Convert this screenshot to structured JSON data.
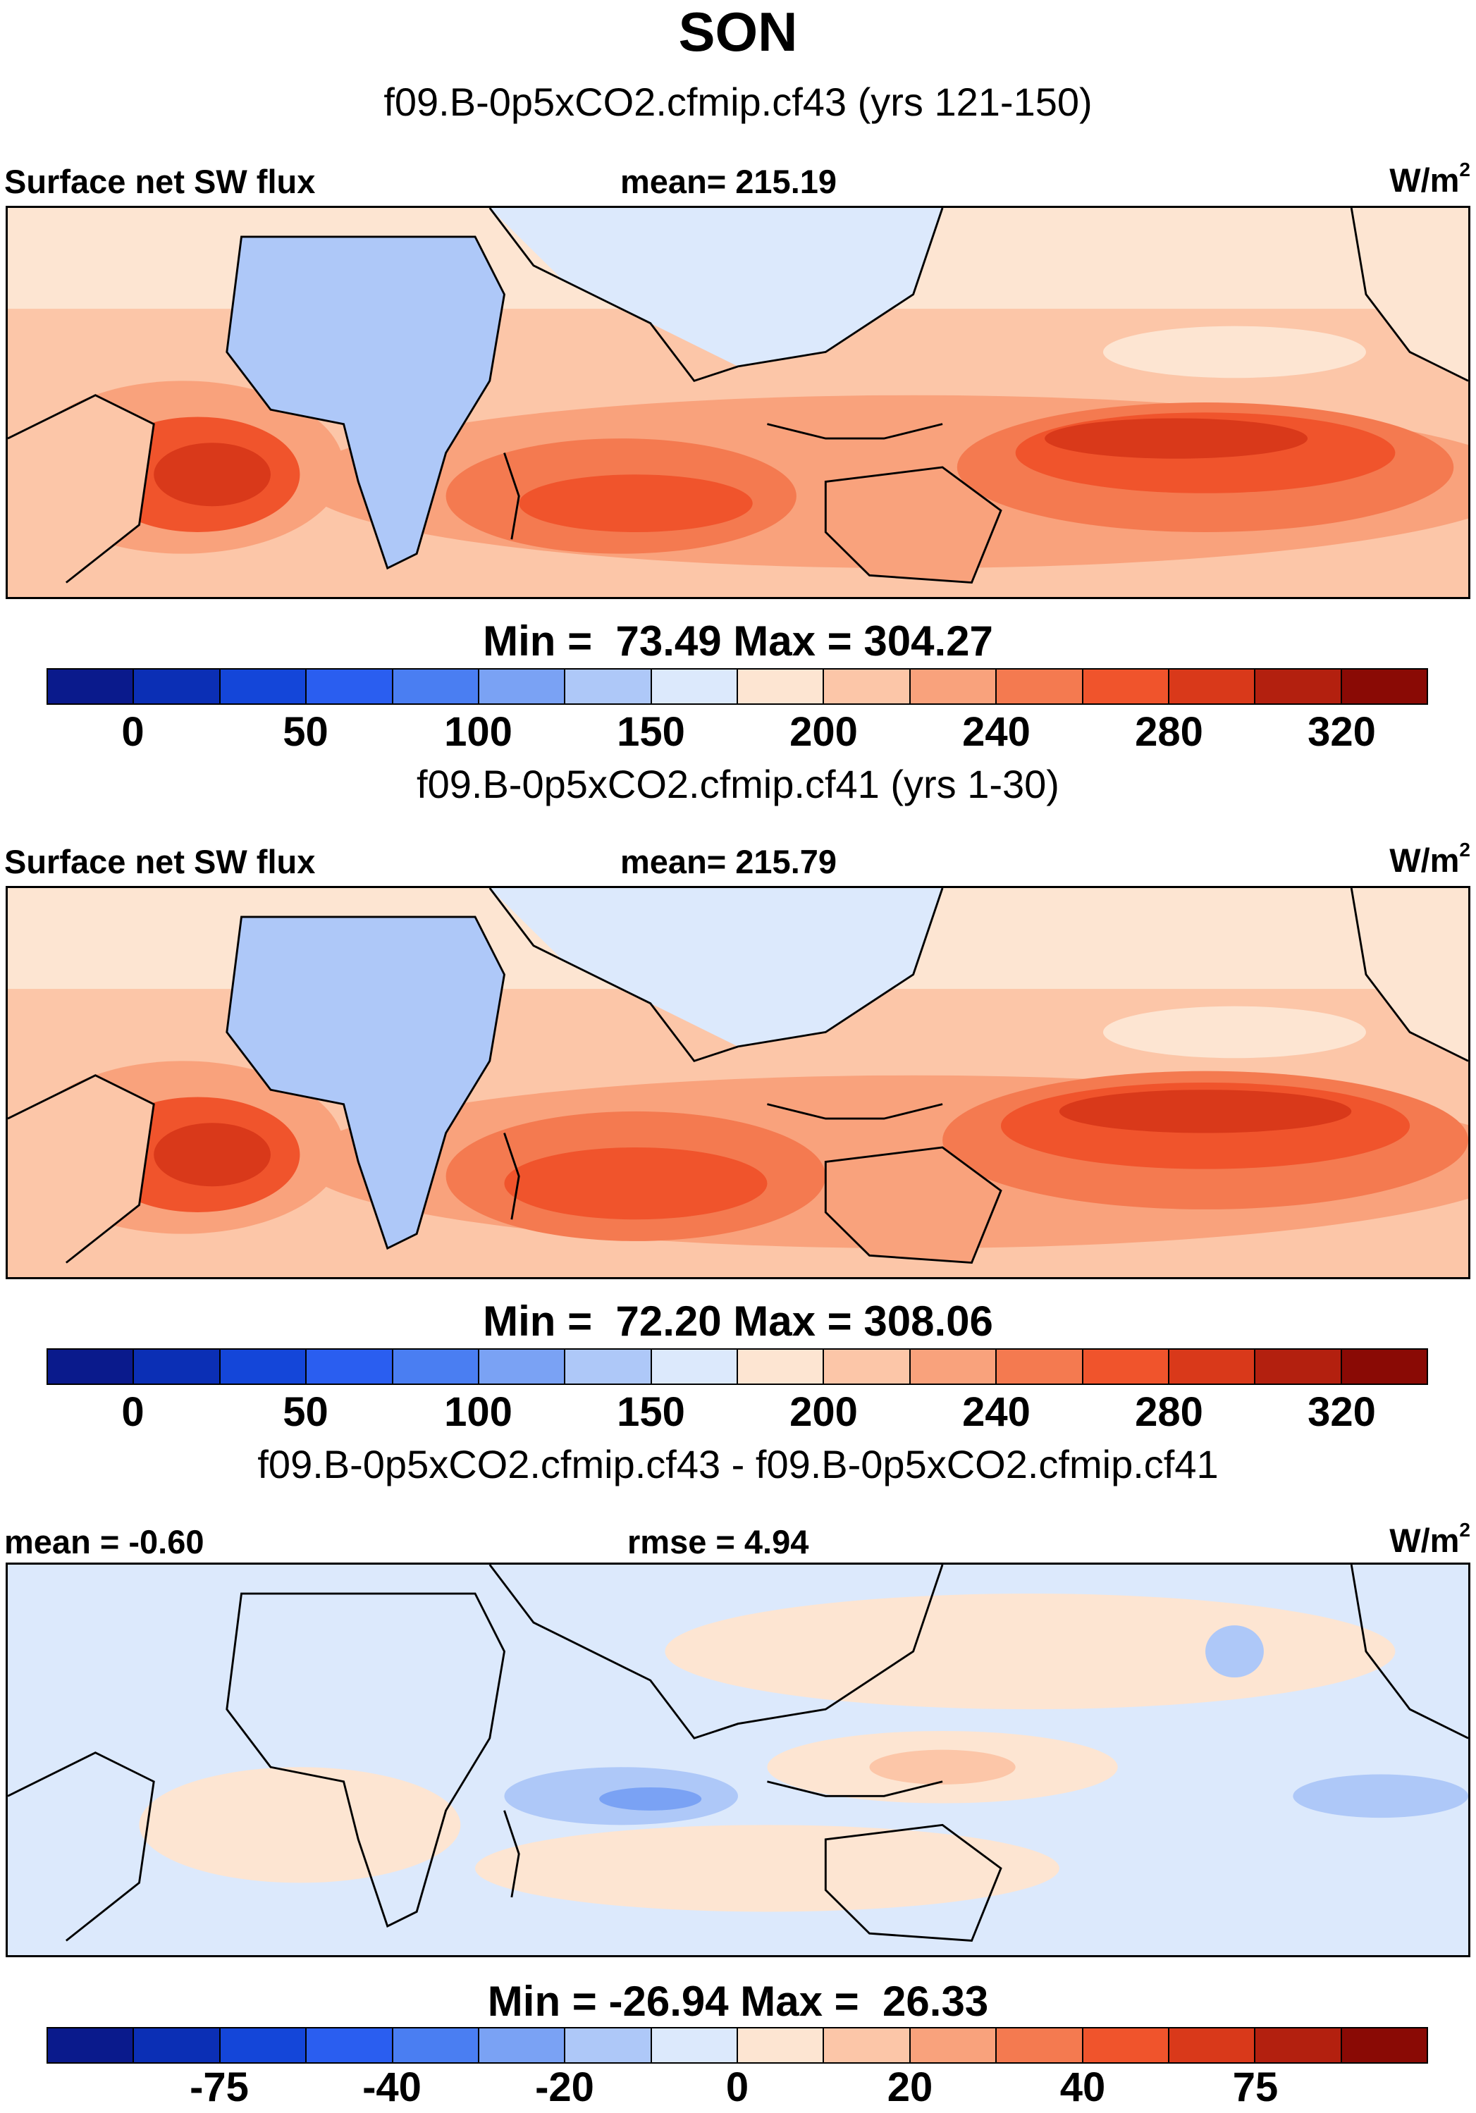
{
  "title": "SON",
  "colors": {
    "scale": [
      "#0a1a8c",
      "#0b2fb5",
      "#1446d9",
      "#2a5ef0",
      "#4a7ef2",
      "#7aa2f4",
      "#aec8f8",
      "#dce9fc",
      "#fde5d2",
      "#fcc6a8",
      "#f9a27c",
      "#f47a50",
      "#f0542c",
      "#d9391a",
      "#b3200f",
      "#8a0a05"
    ],
    "ocean_warm": "#f47a50",
    "land_cool": "#aec8f8"
  },
  "panels": [
    {
      "subtitle": "f09.B-0p5xCO2.cfmip.cf43 (yrs 121-150)",
      "left_label": "Surface net SW flux",
      "center_label": "mean= 215.19",
      "unit_base": "W/m",
      "unit_sup": "2",
      "minmax": "Min =  73.49 Max = 304.27",
      "ticks": [
        "0",
        "50",
        "100",
        "150",
        "200",
        "240",
        "280",
        "320"
      ]
    },
    {
      "subtitle": "f09.B-0p5xCO2.cfmip.cf41 (yrs 1-30)",
      "left_label": "Surface net SW flux",
      "center_label": "mean= 215.79",
      "unit_base": "W/m",
      "unit_sup": "2",
      "minmax": "Min =  72.20 Max = 308.06",
      "ticks": [
        "0",
        "50",
        "100",
        "150",
        "200",
        "240",
        "280",
        "320"
      ]
    },
    {
      "subtitle": "f09.B-0p5xCO2.cfmip.cf43 - f09.B-0p5xCO2.cfmip.cf41",
      "left_label": "mean =  -0.60",
      "center_label": "rmse =   4.94",
      "unit_base": "W/m",
      "unit_sup": "2",
      "minmax": "Min = -26.94 Max =  26.33",
      "ticks": [
        "-75",
        "-40",
        "-20",
        "0",
        "20",
        "40",
        "75"
      ]
    }
  ]
}
